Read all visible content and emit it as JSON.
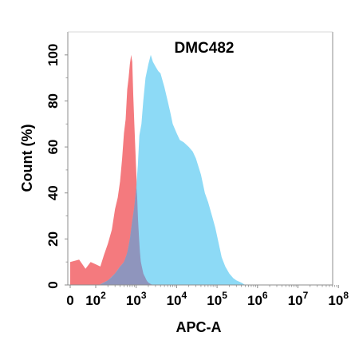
{
  "chart_data": {
    "type": "area",
    "title": "DMC482",
    "xlabel": "APC-A",
    "ylabel": "Count  (%)",
    "x_scale": "log",
    "x_ticks": [
      {
        "value": 0,
        "base": "0",
        "exp": ""
      },
      {
        "value": 100,
        "base": "10",
        "exp": "2"
      },
      {
        "value": 1000,
        "base": "10",
        "exp": "3"
      },
      {
        "value": 10000,
        "base": "10",
        "exp": "4"
      },
      {
        "value": 100000,
        "base": "10",
        "exp": "5"
      },
      {
        "value": 1000000,
        "base": "10",
        "exp": "6"
      },
      {
        "value": 10000000,
        "base": "10",
        "exp": "7"
      },
      {
        "value": 100000000,
        "base": "10",
        "exp": "8"
      }
    ],
    "y_ticks": [
      0,
      20,
      40,
      60,
      80,
      100
    ],
    "ylim": [
      0,
      110
    ],
    "grid": false,
    "series": [
      {
        "color": "#f47a7e",
        "points": [
          [
            0,
            10
          ],
          [
            35,
            11
          ],
          [
            60,
            7
          ],
          [
            80,
            10
          ],
          [
            100,
            9
          ],
          [
            130,
            8
          ],
          [
            160,
            13
          ],
          [
            200,
            18
          ],
          [
            250,
            24
          ],
          [
            300,
            33
          ],
          [
            350,
            38
          ],
          [
            400,
            45
          ],
          [
            450,
            55
          ],
          [
            500,
            66
          ],
          [
            550,
            72
          ],
          [
            600,
            85
          ],
          [
            650,
            90
          ],
          [
            700,
            96
          ],
          [
            750,
            100
          ],
          [
            800,
            97
          ],
          [
            850,
            82
          ],
          [
            900,
            70
          ],
          [
            1000,
            50
          ],
          [
            1100,
            30
          ],
          [
            1200,
            17
          ],
          [
            1300,
            10
          ],
          [
            1500,
            5
          ],
          [
            1800,
            2
          ],
          [
            2000,
            1
          ],
          [
            2500,
            0
          ]
        ]
      },
      {
        "color": "#79d3f5",
        "points": [
          [
            120,
            0
          ],
          [
            200,
            2
          ],
          [
            300,
            5
          ],
          [
            400,
            8
          ],
          [
            500,
            10
          ],
          [
            600,
            14
          ],
          [
            700,
            20
          ],
          [
            800,
            28
          ],
          [
            900,
            34
          ],
          [
            1000,
            42
          ],
          [
            1100,
            52
          ],
          [
            1200,
            65
          ],
          [
            1350,
            70
          ],
          [
            1500,
            80
          ],
          [
            1700,
            90
          ],
          [
            2000,
            96
          ],
          [
            2300,
            100
          ],
          [
            2600,
            97
          ],
          [
            3000,
            95
          ],
          [
            3500,
            93
          ],
          [
            4000,
            92
          ],
          [
            5000,
            86
          ],
          [
            6000,
            80
          ],
          [
            7000,
            75
          ],
          [
            8000,
            70
          ],
          [
            10000,
            66
          ],
          [
            12000,
            63
          ],
          [
            15000,
            62
          ],
          [
            20000,
            60
          ],
          [
            25000,
            58
          ],
          [
            30000,
            55
          ],
          [
            40000,
            48
          ],
          [
            50000,
            40
          ],
          [
            60000,
            36
          ],
          [
            75000,
            30
          ],
          [
            90000,
            25
          ],
          [
            110000,
            18
          ],
          [
            130000,
            12
          ],
          [
            160000,
            8
          ],
          [
            200000,
            5
          ],
          [
            250000,
            3
          ],
          [
            300000,
            2
          ],
          [
            400000,
            1
          ],
          [
            500000,
            0
          ]
        ]
      }
    ]
  }
}
